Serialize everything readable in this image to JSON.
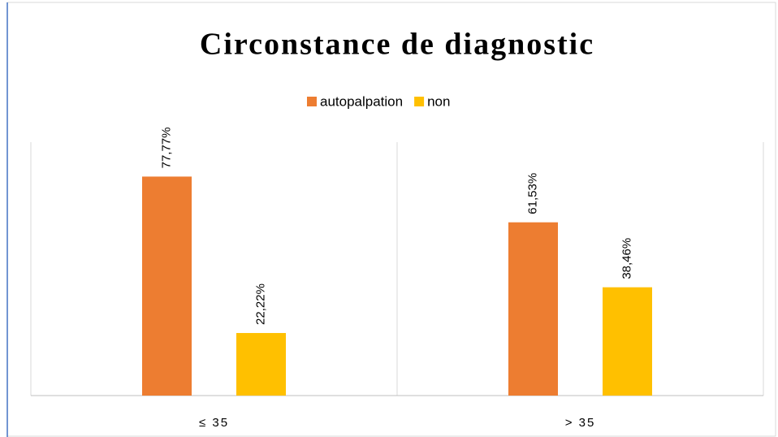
{
  "chart_data": {
    "type": "bar",
    "title": "Circonstance de diagnostic",
    "categories": [
      "≤ 35",
      "> 35"
    ],
    "series": [
      {
        "name": "autopalpation",
        "color": "#ED7D31",
        "values": [
          77.77,
          61.53
        ],
        "value_labels": [
          "77,77%",
          "61,53%"
        ]
      },
      {
        "name": "non",
        "color": "#FFC000",
        "values": [
          22.22,
          38.46
        ],
        "value_labels": [
          "22,22%",
          "38,46%"
        ]
      }
    ],
    "ylim": [
      0,
      90
    ],
    "legend": "top"
  }
}
